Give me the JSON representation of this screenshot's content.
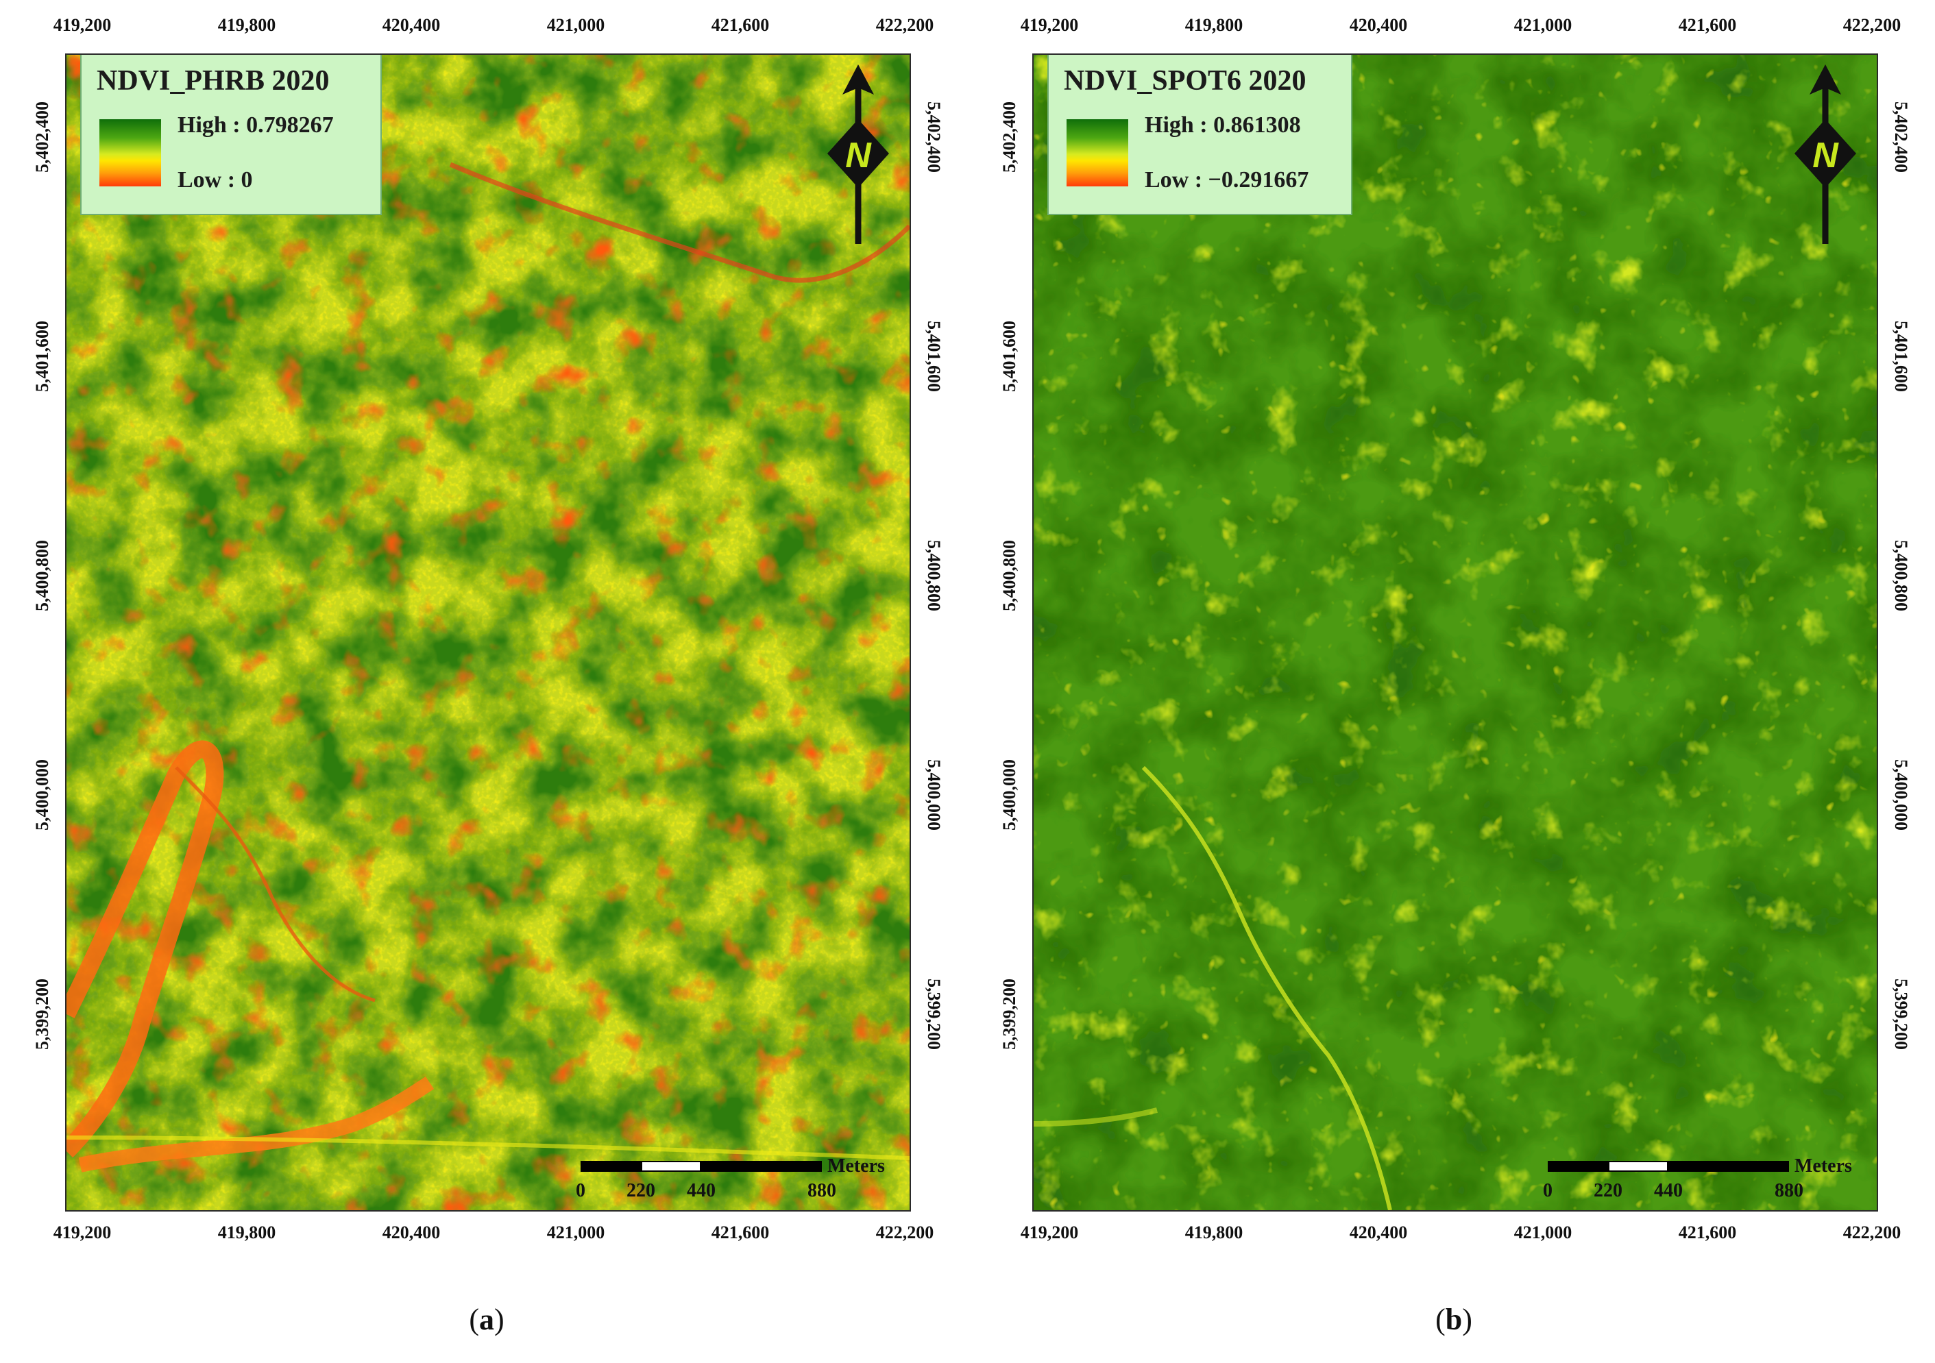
{
  "panels": [
    {
      "caption_open": "(",
      "caption_letter": "a",
      "caption_close": ")",
      "legend": {
        "title": "NDVI_PHRB 2020",
        "high_label": "High : 0.798267",
        "low_label": "Low : 0"
      },
      "x_ticks": [
        "419,200",
        "419,800",
        "420,400",
        "421,000",
        "421,600",
        "422,200"
      ],
      "y_ticks": [
        "5,402,400",
        "5,401,600",
        "5,400,800",
        "5,400,000",
        "5,399,200"
      ],
      "scale": {
        "units": "Meters",
        "labels": [
          "0",
          "220",
          "440",
          "880"
        ]
      },
      "palette": {
        "base": "#c8d81e",
        "dark": "#2f7d0c",
        "light": "#f2ec16",
        "stress": "#ff5a0f"
      }
    },
    {
      "caption_open": "(",
      "caption_letter": "b",
      "caption_close": ")",
      "legend": {
        "title": "NDVI_SPOT6 2020",
        "high_label": "High : 0.861308",
        "low_label": "Low : −0.291667"
      },
      "x_ticks": [
        "419,200",
        "419,800",
        "420,400",
        "421,000",
        "421,600",
        "422,200"
      ],
      "y_ticks": [
        "5,402,400",
        "5,401,600",
        "5,400,800",
        "5,400,000",
        "5,399,200"
      ],
      "scale": {
        "units": "Meters",
        "labels": [
          "0",
          "220",
          "440",
          "880"
        ]
      },
      "palette": {
        "base": "#4c9a12",
        "dark": "#2b7008",
        "light": "#d4e820",
        "stress": "#ffee1a"
      }
    }
  ],
  "north_arrow": {
    "letter": "N",
    "icon": "north-arrow-icon"
  }
}
